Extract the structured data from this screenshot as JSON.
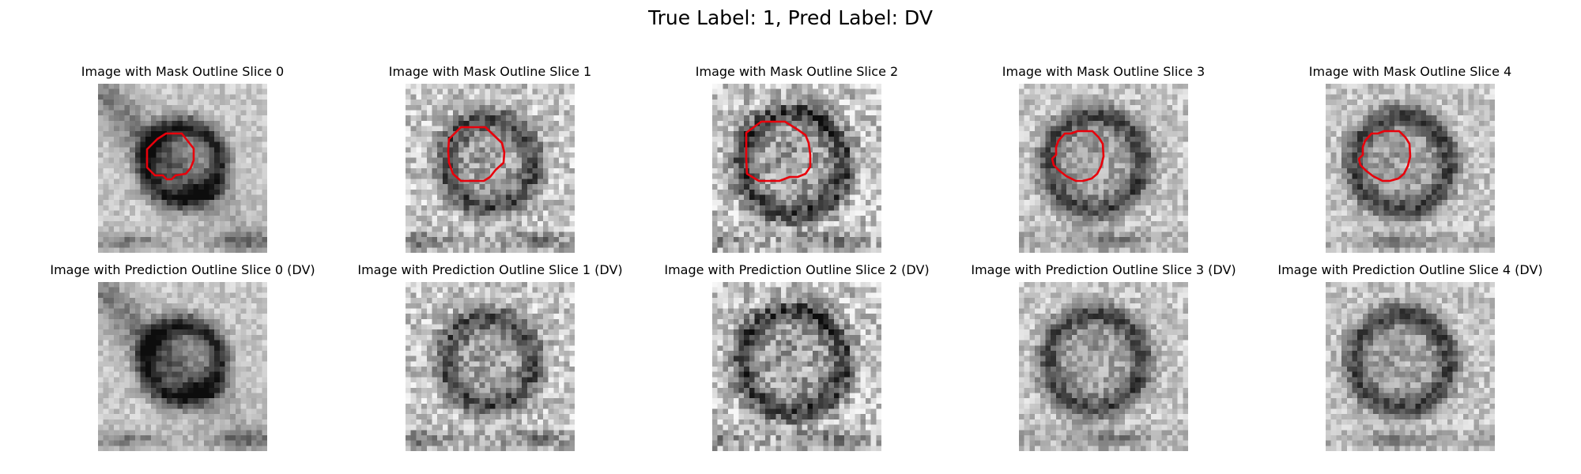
{
  "figure": {
    "suptitle": "True Label: 1, Pred Label: DV"
  },
  "rows": [
    {
      "name": "mask-row",
      "outline_color": "#e8000b",
      "panels": [
        {
          "title": "Image with Mask Outline Slice 0",
          "slice": 0,
          "outline": true
        },
        {
          "title": "Image with Mask Outline Slice 1",
          "slice": 1,
          "outline": true
        },
        {
          "title": "Image with Mask Outline Slice 2",
          "slice": 2,
          "outline": true
        },
        {
          "title": "Image with Mask Outline Slice 3",
          "slice": 3,
          "outline": true
        },
        {
          "title": "Image with Mask Outline Slice 4",
          "slice": 4,
          "outline": true
        }
      ]
    },
    {
      "name": "prediction-row",
      "panels": [
        {
          "title": "Image with Prediction Outline Slice 0 (DV)",
          "slice": 0,
          "outline": false
        },
        {
          "title": "Image with Prediction Outline Slice 1 (DV)",
          "slice": 1,
          "outline": false
        },
        {
          "title": "Image with Prediction Outline Slice 2 (DV)",
          "slice": 2,
          "outline": false
        },
        {
          "title": "Image with Prediction Outline Slice 3 (DV)",
          "slice": 3,
          "outline": false
        },
        {
          "title": "Image with Prediction Outline Slice 4 (DV)",
          "slice": 4,
          "outline": false
        }
      ]
    }
  ]
}
